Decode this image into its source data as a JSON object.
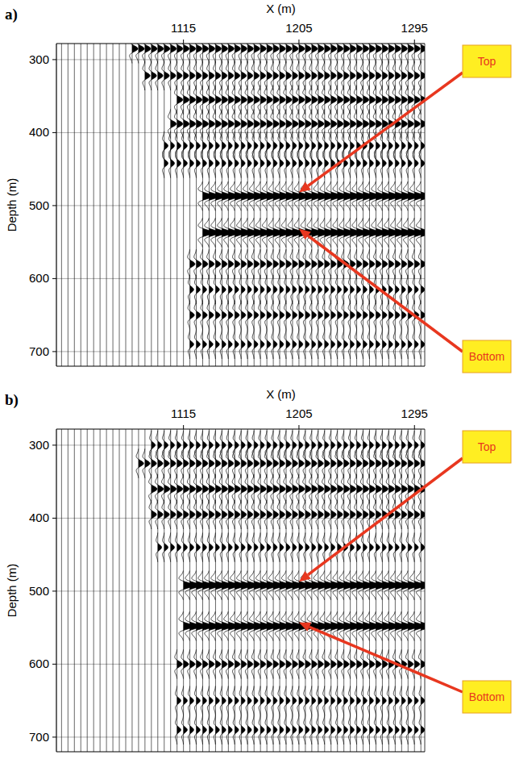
{
  "chart_data": [
    {
      "type": "wiggle",
      "panel_label": "a)",
      "x_label": "X (m)",
      "y_label": "Depth (m)",
      "xlim": [
        1016,
        1303
      ],
      "xticks": [
        1115,
        1205,
        1295
      ],
      "ylim": [
        278,
        720
      ],
      "yticks": [
        300,
        400,
        500,
        600,
        700
      ],
      "grid": true,
      "x": [
        1020,
        1025,
        1030,
        1035,
        1040,
        1045,
        1050,
        1055,
        1060,
        1065,
        1070,
        1075,
        1080,
        1085,
        1090,
        1095,
        1100,
        1105,
        1110,
        1115,
        1120,
        1125,
        1130,
        1135,
        1140,
        1145,
        1150,
        1155,
        1160,
        1165,
        1170,
        1175,
        1180,
        1185,
        1190,
        1195,
        1200,
        1205,
        1210,
        1215,
        1220,
        1225,
        1230,
        1235,
        1240,
        1245,
        1250,
        1255,
        1260,
        1265,
        1270,
        1275,
        1280,
        1285,
        1290,
        1295,
        1300
      ],
      "reflectors": [
        {
          "depth": 285,
          "amplitude": 0.9,
          "x_from": 1075
        },
        {
          "depth": 322,
          "amplitude": 0.8,
          "x_from": 1085
        },
        {
          "depth": 355,
          "amplitude": 0.9,
          "x_from": 1110
        },
        {
          "depth": 388,
          "amplitude": 0.9,
          "x_from": 1105
        },
        {
          "depth": 418,
          "amplitude": 0.6,
          "x_from": 1100
        },
        {
          "depth": 442,
          "amplitude": 0.6,
          "x_from": 1100
        },
        {
          "depth": 487,
          "amplitude": 1.6,
          "x_from": 1130
        },
        {
          "depth": 537,
          "amplitude": 1.6,
          "x_from": 1130
        },
        {
          "depth": 580,
          "amplitude": 0.8,
          "x_from": 1120
        },
        {
          "depth": 615,
          "amplitude": 0.6,
          "x_from": 1120
        },
        {
          "depth": 650,
          "amplitude": 0.7,
          "x_from": 1120
        },
        {
          "depth": 690,
          "amplitude": 0.6,
          "x_from": 1120
        }
      ],
      "annotations": [
        {
          "text": "Top",
          "x": 1205,
          "depth": 482
        },
        {
          "text": "Bottom",
          "x": 1205,
          "depth": 532
        }
      ]
    },
    {
      "type": "wiggle",
      "panel_label": "b)",
      "x_label": "X (m)",
      "y_label": "Depth (m)",
      "xlim": [
        1016,
        1303
      ],
      "xticks": [
        1115,
        1205,
        1295
      ],
      "ylim": [
        278,
        720
      ],
      "yticks": [
        300,
        400,
        500,
        600,
        700
      ],
      "grid": true,
      "x": [
        1020,
        1025,
        1030,
        1035,
        1040,
        1045,
        1050,
        1055,
        1060,
        1065,
        1070,
        1075,
        1080,
        1085,
        1090,
        1095,
        1100,
        1105,
        1110,
        1115,
        1120,
        1125,
        1130,
        1135,
        1140,
        1145,
        1150,
        1155,
        1160,
        1165,
        1170,
        1175,
        1180,
        1185,
        1190,
        1195,
        1200,
        1205,
        1210,
        1215,
        1220,
        1225,
        1230,
        1235,
        1240,
        1245,
        1250,
        1255,
        1260,
        1265,
        1270,
        1275,
        1280,
        1285,
        1290,
        1295,
        1300
      ],
      "reflectors": [
        {
          "depth": 300,
          "amplitude": 0.6,
          "x_from": 1090
        },
        {
          "depth": 325,
          "amplitude": 0.8,
          "x_from": 1080
        },
        {
          "depth": 360,
          "amplitude": 0.9,
          "x_from": 1090
        },
        {
          "depth": 395,
          "amplitude": 0.8,
          "x_from": 1090
        },
        {
          "depth": 440,
          "amplitude": 0.6,
          "x_from": 1095
        },
        {
          "depth": 492,
          "amplitude": 1.6,
          "x_from": 1115
        },
        {
          "depth": 548,
          "amplitude": 1.6,
          "x_from": 1115
        },
        {
          "depth": 600,
          "amplitude": 0.8,
          "x_from": 1110
        },
        {
          "depth": 650,
          "amplitude": 0.6,
          "x_from": 1110
        },
        {
          "depth": 690,
          "amplitude": 0.6,
          "x_from": 1110
        }
      ],
      "annotations": [
        {
          "text": "Top",
          "x": 1205,
          "depth": 487
        },
        {
          "text": "Bottom",
          "x": 1205,
          "depth": 543
        }
      ]
    }
  ]
}
